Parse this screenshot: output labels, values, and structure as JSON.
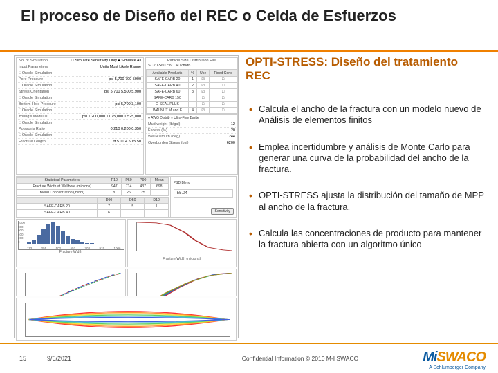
{
  "title": "El proceso de Diseño del REC o Celda de Esfuerzos",
  "subtitle": "OPTI-STRESS: Diseño del tratamiento REC",
  "bullets": [
    "Calcula el ancho de la fractura con un modelo nuevo de Análisis de elementos finitos",
    "Emplea incertidumbre y análisis de Monte Carlo para generar una curva de la probabilidad del ancho de la fractura.",
    "OPTI-STRESS ajusta la distribución del tamaño de MPP al ancho de la fractura.",
    "Calcula las concentraciones de producto para mantener la fractura abierta con un algoritmo único"
  ],
  "footer": {
    "page": "15",
    "date": "9/6/2021",
    "confidential": "Confidential Information © 2010 M-I SWACO"
  },
  "logo": {
    "mi": "Mi",
    "swaco": "SWACO",
    "tag": "A Schlumberger Company"
  },
  "colors": {
    "accent": "#b85c00",
    "orange_rule": "#e48b00",
    "bar": "#4a6aa0",
    "blue": "#0a5aa0"
  },
  "left_panel": {
    "form_left": [
      [
        "No. of Simulation",
        "□ Simulate Sensitivity Only  ● Simulate All"
      ],
      [
        "Input Parameters",
        "Units  Most Likely  Range"
      ],
      [
        "□ Oracle Simulation",
        ""
      ],
      [
        "Pore Pressure",
        "psi   5,700   700   5900"
      ],
      [
        "□ Oracle Simulation",
        ""
      ],
      [
        "Stress Orientation",
        "psi   5,700   5,500   5,900"
      ],
      [
        "□ Oracle Simulation",
        ""
      ],
      [
        "Bottom Hole Pressure",
        "psi   5,700   3,100"
      ],
      [
        "□ Oracle Simulation",
        ""
      ],
      [
        "Young's Modulus",
        "psi  1,200,000  1,075,000  1,525,000"
      ],
      [
        "□ Oracle Simulation",
        ""
      ],
      [
        "Poisson's Ratio",
        "0.210   0.200   0.350"
      ],
      [
        "□ Oracle Simulation",
        ""
      ],
      [
        "Fracture Length",
        "ft   5.00   4.50   5.50"
      ]
    ],
    "psd_title": "Particle Size Distribution File",
    "psd_file": "SC20-S60.csv / ALP.mdb",
    "products_header": [
      "Available Products",
      "%",
      "Use",
      "Fixed Conc"
    ],
    "products": [
      [
        "SAFE-CARB 20",
        "1",
        "☑",
        "□"
      ],
      [
        "SAFE-CARB 40",
        "2",
        "☑",
        "□"
      ],
      [
        "SAFE-CARB 60",
        "3",
        "☑",
        "□"
      ],
      [
        "SAFE-CARB 150",
        "",
        "□",
        "□"
      ],
      [
        "G-SEAL PLUS",
        "",
        "□",
        "□"
      ],
      [
        "WALNUT M and F",
        "4",
        "☑",
        "□"
      ]
    ],
    "awg_row": "● AWG Distrib     ○ Ultra-Fine Barite",
    "info_rows": [
      [
        "Mud weight (lb/gal)",
        "12"
      ],
      [
        "Excess (%)",
        "20"
      ],
      [
        "Well Azimuth (deg)",
        "244"
      ],
      [
        "Overburden Stress (psi)",
        "6200"
      ]
    ],
    "stats_header": [
      "Statistical Parameters",
      "P10",
      "P50",
      "P90",
      "Mean"
    ],
    "stats_rows": [
      [
        "Fracture Width at Wellbore (microns)",
        "947",
        "714",
        "437",
        "698"
      ],
      [
        "Blend Concentration (lb/bbl)",
        "20",
        "26",
        "25",
        ""
      ]
    ],
    "d_header": [
      "",
      "D90",
      "D50",
      "D10"
    ],
    "d_rows": [
      [
        "SAFE-CARB 20",
        "7",
        "5",
        "1"
      ],
      [
        "SAFE-CARB 40",
        "6",
        "",
        ""
      ],
      [
        "SAFE-CARB 60",
        "",
        "",
        "1"
      ],
      [
        "G-SEAL PLUS",
        "",
        "",
        ""
      ],
      [
        "WALNUT MEDIUM",
        "7",
        "",
        ""
      ]
    ],
    "psd_blend": "55.04",
    "sensitivity_btn": "Sensitivity",
    "histogram": {
      "title": "Fracture Width",
      "x_ticks": [
        "113",
        "255",
        "502",
        "552",
        "703",
        "915",
        "1006"
      ],
      "y_ticks": [
        "1000",
        "800",
        "600",
        "400",
        "200",
        "0"
      ],
      "values": [
        80,
        180,
        380,
        620,
        820,
        920,
        780,
        560,
        360,
        220,
        140,
        80,
        40,
        20
      ],
      "color": "#4a6aa0"
    },
    "cdf": {
      "title": "Fracture Width (microns)",
      "x_ticks": [
        "0",
        "400",
        "800",
        "1,200",
        "1,600"
      ],
      "y_ticks": [
        "100",
        "80",
        "60",
        "40",
        "20",
        "0"
      ],
      "points": [
        [
          0,
          100
        ],
        [
          20,
          98
        ],
        [
          35,
          90
        ],
        [
          50,
          65
        ],
        [
          62,
          35
        ],
        [
          75,
          12
        ],
        [
          90,
          3
        ],
        [
          100,
          0
        ]
      ],
      "color": "#b03030"
    },
    "line_left": {
      "title": "Maximum Fracture Width (microns)",
      "y_ticks": [
        "0.5",
        "0.4",
        "0.3",
        "0.2",
        "0.1",
        "-0.1"
      ],
      "x_ticks": [
        "0",
        "400",
        "800",
        "1200"
      ],
      "series": [
        {
          "color": "#cc3333",
          "dash": "4,2",
          "pts": [
            [
              0,
              5
            ],
            [
              30,
              30
            ],
            [
              60,
              65
            ],
            [
              90,
              92
            ],
            [
              100,
              98
            ]
          ]
        },
        {
          "color": "#3355cc",
          "dash": "3,2",
          "pts": [
            [
              0,
              8
            ],
            [
              35,
              35
            ],
            [
              65,
              70
            ],
            [
              92,
              95
            ],
            [
              100,
              99
            ]
          ]
        },
        {
          "color": "#33aa55",
          "dash": "2,2",
          "pts": [
            [
              0,
              10
            ],
            [
              40,
              40
            ],
            [
              70,
              72
            ],
            [
              95,
              96
            ],
            [
              100,
              100
            ]
          ]
        }
      ]
    },
    "line_right": {
      "title": "Particle Size (microns)",
      "y_ticks": [
        "100",
        "80",
        "60",
        "40",
        "20",
        "0"
      ],
      "x_ticks": [
        "0",
        "500",
        "1000",
        "1500",
        "2000"
      ],
      "series": [
        {
          "color": "#cc3333",
          "pts": [
            [
              0,
              0
            ],
            [
              25,
              30
            ],
            [
              45,
              60
            ],
            [
              65,
              85
            ],
            [
              85,
              97
            ],
            [
              100,
              100
            ]
          ]
        },
        {
          "color": "#3355cc",
          "pts": [
            [
              0,
              0
            ],
            [
              20,
              25
            ],
            [
              40,
              55
            ],
            [
              60,
              80
            ],
            [
              80,
              95
            ],
            [
              100,
              100
            ]
          ]
        },
        {
          "color": "#33aa55",
          "pts": [
            [
              0,
              0
            ],
            [
              15,
              20
            ],
            [
              35,
              50
            ],
            [
              55,
              75
            ],
            [
              78,
              93
            ],
            [
              100,
              100
            ]
          ]
        },
        {
          "color": "#aa8822",
          "pts": [
            [
              0,
              0
            ],
            [
              10,
              15
            ],
            [
              30,
              45
            ],
            [
              52,
              72
            ],
            [
              75,
              92
            ],
            [
              100,
              100
            ]
          ]
        }
      ]
    },
    "spectrum": {
      "x_title": "Length (m)",
      "y_title": "Stress (psi)",
      "x_ticks": [
        "-10",
        "-5",
        "0",
        "5",
        "10"
      ],
      "bands": [
        {
          "color": "#ff3030",
          "y": 0.15
        },
        {
          "color": "#ff9030",
          "y": 0.28
        },
        {
          "color": "#f7e040",
          "y": 0.42
        },
        {
          "color": "#60d060",
          "y": 0.56
        },
        {
          "color": "#40c0d0",
          "y": 0.7
        },
        {
          "color": "#4060e0",
          "y": 0.85
        }
      ]
    }
  }
}
